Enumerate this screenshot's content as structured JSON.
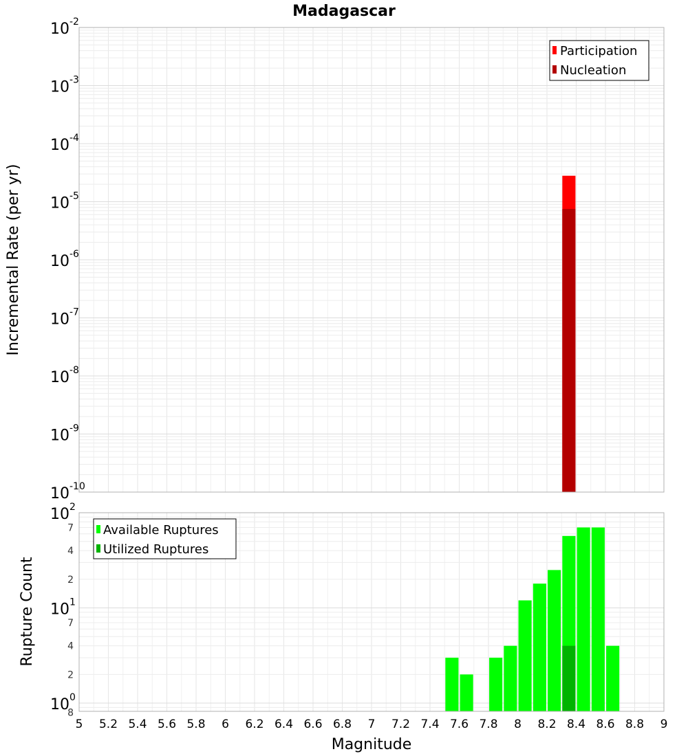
{
  "chart_data": [
    {
      "type": "bar",
      "title": "Madagascar",
      "ylabel": "Incremental Rate (per yr)",
      "xlabel": "",
      "y_scale": "log",
      "xlim": [
        5,
        9
      ],
      "ylim": [
        1e-10,
        0.01
      ],
      "grid": true,
      "legend_placement": "top-right",
      "y_ticks": [
        {
          "base": "10",
          "exp": "-10",
          "value": 1e-10
        },
        {
          "base": "10",
          "exp": "-9",
          "value": 1e-09
        },
        {
          "base": "10",
          "exp": "-8",
          "value": 1e-08
        },
        {
          "base": "10",
          "exp": "-7",
          "value": 1e-07
        },
        {
          "base": "10",
          "exp": "-6",
          "value": 1e-06
        },
        {
          "base": "10",
          "exp": "-5",
          "value": 1e-05
        },
        {
          "base": "10",
          "exp": "-4",
          "value": 0.0001
        },
        {
          "base": "10",
          "exp": "-3",
          "value": 0.001
        },
        {
          "base": "10",
          "exp": "-2",
          "value": 0.01
        }
      ],
      "bar_width": 0.09,
      "series": [
        {
          "name": "Participation",
          "color": "#ff0000",
          "points": [
            {
              "x": 8.35,
              "y": 2.8e-05
            }
          ]
        },
        {
          "name": "Nucleation",
          "color": "#b30000",
          "points": [
            {
              "x": 8.35,
              "y": 7.5e-06
            }
          ]
        }
      ]
    },
    {
      "type": "bar",
      "ylabel": "Rupture Count",
      "xlabel": "Magnitude",
      "y_scale": "log",
      "xlim": [
        5,
        9
      ],
      "ylim": [
        0.82,
        100
      ],
      "grid": true,
      "legend_placement": "top-left",
      "x_ticks": [
        "5",
        "5.2",
        "5.4",
        "5.6",
        "5.8",
        "6",
        "6.2",
        "6.4",
        "6.6",
        "6.8",
        "7",
        "7.2",
        "7.4",
        "7.6",
        "7.8",
        "8",
        "8.2",
        "8.4",
        "8.6",
        "8.8",
        "9"
      ],
      "y_major_ticks": [
        {
          "base": "10",
          "exp": "0",
          "value": 1
        },
        {
          "base": "10",
          "exp": "1",
          "value": 10
        },
        {
          "base": "10",
          "exp": "2",
          "value": 100
        }
      ],
      "y_minor_ticks": [
        {
          "label": "8",
          "value": 0.8
        },
        {
          "label": "2",
          "value": 2
        },
        {
          "label": "4",
          "value": 4
        },
        {
          "label": "7",
          "value": 7
        },
        {
          "label": "2",
          "value": 20
        },
        {
          "label": "4",
          "value": 40
        },
        {
          "label": "7",
          "value": 70
        }
      ],
      "bar_width": 0.09,
      "series": [
        {
          "name": "Available Ruptures",
          "color": "#00ff00",
          "points": [
            {
              "x": 7.55,
              "y": 3
            },
            {
              "x": 7.65,
              "y": 2
            },
            {
              "x": 7.85,
              "y": 3
            },
            {
              "x": 7.95,
              "y": 4
            },
            {
              "x": 8.05,
              "y": 12
            },
            {
              "x": 8.15,
              "y": 18
            },
            {
              "x": 8.25,
              "y": 25
            },
            {
              "x": 8.35,
              "y": 57
            },
            {
              "x": 8.45,
              "y": 70
            },
            {
              "x": 8.55,
              "y": 70
            },
            {
              "x": 8.65,
              "y": 4
            }
          ]
        },
        {
          "name": "Utilized Ruptures",
          "color": "#00b300",
          "points": [
            {
              "x": 8.35,
              "y": 4
            }
          ]
        }
      ]
    }
  ]
}
